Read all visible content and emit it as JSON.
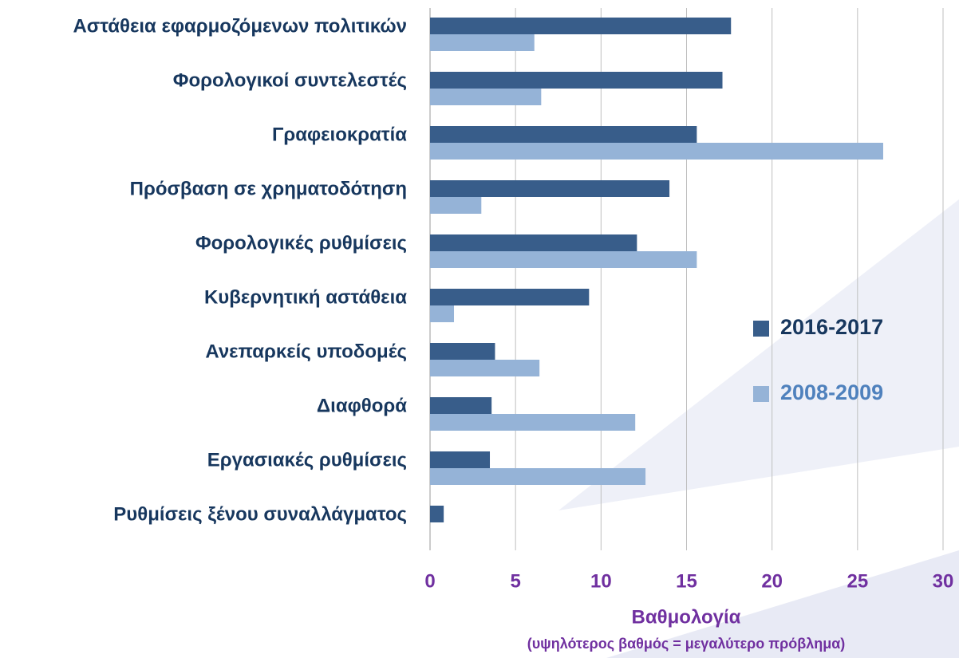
{
  "chart_data": {
    "type": "bar",
    "orientation": "horizontal",
    "x_label": "Βαθμολογία",
    "x_sublabel": "(υψηλότερος βαθμός = μεγαλύτερο πρόβλημα)",
    "categories": [
      "Αστάθεια εφαρμοζόμενων πολιτικών",
      "Φορολογικοί συντελεστές",
      "Γραφειοκρατία",
      "Πρόσβαση σε χρηματοδότηση",
      "Φορολογικές ρυθμίσεις",
      "Κυβερνητική αστάθεια",
      "Ανεπαρκείς υποδομές",
      "Διαφθορά",
      "Εργασιακές ρυθμίσεις",
      "Ρυθμίσεις ξένου συναλλάγματος"
    ],
    "series": [
      {
        "name": "2016-2017",
        "color": "#385d8a",
        "values": [
          17.6,
          17.1,
          15.6,
          14.0,
          12.1,
          9.3,
          3.8,
          3.6,
          3.5,
          0.8
        ]
      },
      {
        "name": "2008-2009",
        "color": "#95b3d7",
        "values": [
          6.1,
          6.5,
          26.5,
          3.0,
          15.6,
          1.4,
          6.4,
          12.0,
          12.6,
          null
        ]
      }
    ],
    "xlim": [
      0,
      30
    ],
    "xticks": [
      0,
      5,
      10,
      15,
      20,
      25,
      30
    ],
    "grid": true,
    "legend": "right"
  }
}
